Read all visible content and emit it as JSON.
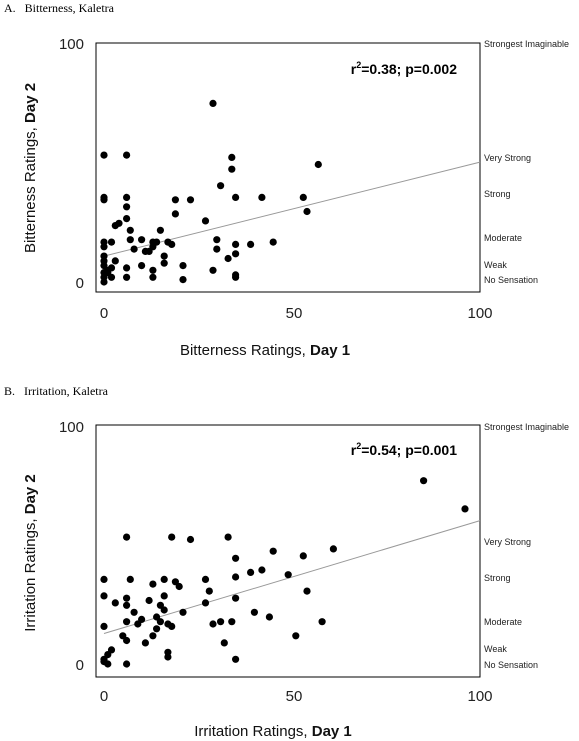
{
  "panels": [
    {
      "panel_label": "A.   Bitterness, Kaletra",
      "stat_r2_prefix": "r",
      "stat_r2_exponent": "2",
      "stat_rest": "=0.38; p=0.002",
      "xlabel_prefix": "Bitterness Ratings, ",
      "xlabel_bold": "Day 1",
      "ylabel_prefix": "Bitterness Ratings, ",
      "ylabel_bold": "Day 2",
      "x_ticks": [
        "0",
        "50",
        "100"
      ],
      "y_ticks": [
        "100",
        "0"
      ],
      "anchors": [
        "Strongest Imaginable",
        "Very Strong",
        "Strong",
        "Moderate",
        "Weak",
        "No Sensation"
      ]
    },
    {
      "panel_label": "B.   Irritation, Kaletra",
      "stat_r2_prefix": "r",
      "stat_r2_exponent": "2",
      "stat_rest": "=0.54; p=0.001",
      "xlabel_prefix": "Irritation Ratings, ",
      "xlabel_bold": "Day 1",
      "ylabel_prefix": "Irritation Ratings, ",
      "ylabel_bold": "Day 2",
      "x_ticks": [
        "0",
        "50",
        "100"
      ],
      "y_ticks": [
        "100",
        "0"
      ],
      "anchors": [
        "Strongest Imaginable",
        "Very Strong",
        "Strong",
        "Moderate",
        "Weak",
        "No Sensation"
      ]
    }
  ],
  "chart_data": [
    {
      "type": "scatter",
      "title": "Bitterness, Kaletra",
      "xlabel": "Bitterness Ratings, Day 1",
      "ylabel": "Bitterness Ratings, Day 2",
      "xlim": [
        0,
        100
      ],
      "ylim": [
        0,
        100
      ],
      "x_ticks": [
        0,
        50,
        100
      ],
      "y_ticks": [
        0,
        100
      ],
      "annotation": "r2=0.38; p=0.002",
      "trendline": {
        "x": [
          0,
          100
        ],
        "y": [
          11,
          51
        ]
      },
      "right_axis_anchors": [
        {
          "label": "Strongest Imaginable",
          "value": 100
        },
        {
          "label": "Very Strong",
          "value": 51
        },
        {
          "label": "Strong",
          "value": 36
        },
        {
          "label": "Moderate",
          "value": 18
        },
        {
          "label": "Weak",
          "value": 7
        },
        {
          "label": "No Sensation",
          "value": 0
        }
      ],
      "points": [
        [
          0,
          54
        ],
        [
          0,
          36
        ],
        [
          0,
          35
        ],
        [
          0,
          17
        ],
        [
          0,
          15
        ],
        [
          0,
          11
        ],
        [
          0,
          9
        ],
        [
          0,
          7
        ],
        [
          0,
          4
        ],
        [
          0,
          2
        ],
        [
          0,
          0
        ],
        [
          1,
          4
        ],
        [
          1,
          5
        ],
        [
          2,
          17
        ],
        [
          2,
          6
        ],
        [
          2,
          2
        ],
        [
          3,
          9
        ],
        [
          3,
          24
        ],
        [
          4,
          25
        ],
        [
          6,
          54
        ],
        [
          6,
          36
        ],
        [
          6,
          32
        ],
        [
          6,
          27
        ],
        [
          6,
          6
        ],
        [
          6,
          2
        ],
        [
          7,
          22
        ],
        [
          7,
          18
        ],
        [
          8,
          14
        ],
        [
          10,
          18
        ],
        [
          10,
          7
        ],
        [
          11,
          13
        ],
        [
          12,
          13
        ],
        [
          13,
          15
        ],
        [
          13,
          17
        ],
        [
          13,
          5
        ],
        [
          13,
          2
        ],
        [
          14,
          17
        ],
        [
          15,
          22
        ],
        [
          16,
          11
        ],
        [
          16,
          8
        ],
        [
          17,
          17
        ],
        [
          18,
          16
        ],
        [
          19,
          29
        ],
        [
          19,
          35
        ],
        [
          21,
          7
        ],
        [
          21,
          1
        ],
        [
          23,
          35
        ],
        [
          27,
          26
        ],
        [
          29,
          76
        ],
        [
          29,
          5
        ],
        [
          30,
          18
        ],
        [
          30,
          14
        ],
        [
          31,
          41
        ],
        [
          33,
          10
        ],
        [
          34,
          53
        ],
        [
          34,
          48
        ],
        [
          35,
          16
        ],
        [
          35,
          12
        ],
        [
          35,
          36
        ],
        [
          35,
          3
        ],
        [
          35,
          2
        ],
        [
          39,
          16
        ],
        [
          42,
          36
        ],
        [
          45,
          17
        ],
        [
          53,
          36
        ],
        [
          54,
          30
        ],
        [
          57,
          50
        ]
      ]
    },
    {
      "type": "scatter",
      "title": "Irritation, Kaletra",
      "xlabel": "Irritation Ratings, Day 1",
      "ylabel": "Irritation Ratings, Day 2",
      "xlim": [
        0,
        100
      ],
      "ylim": [
        0,
        100
      ],
      "x_ticks": [
        0,
        50,
        100
      ],
      "y_ticks": [
        0,
        100
      ],
      "annotation": "r2=0.54; p=0.001",
      "trendline": {
        "x": [
          0,
          100
        ],
        "y": [
          13,
          61
        ]
      },
      "right_axis_anchors": [
        {
          "label": "Strongest Imaginable",
          "value": 100
        },
        {
          "label": "Very Strong",
          "value": 51
        },
        {
          "label": "Strong",
          "value": 36
        },
        {
          "label": "Moderate",
          "value": 18
        },
        {
          "label": "Weak",
          "value": 7
        },
        {
          "label": "No Sensation",
          "value": 0
        }
      ],
      "points": [
        [
          0,
          36
        ],
        [
          0,
          29
        ],
        [
          0,
          16
        ],
        [
          0,
          2
        ],
        [
          0,
          1
        ],
        [
          1,
          0
        ],
        [
          1,
          4
        ],
        [
          2,
          6
        ],
        [
          3,
          26
        ],
        [
          5,
          12
        ],
        [
          6,
          54
        ],
        [
          6,
          28
        ],
        [
          6,
          25
        ],
        [
          6,
          18
        ],
        [
          6,
          10
        ],
        [
          6,
          0
        ],
        [
          7,
          36
        ],
        [
          8,
          22
        ],
        [
          9,
          17
        ],
        [
          10,
          19
        ],
        [
          11,
          9
        ],
        [
          12,
          27
        ],
        [
          13,
          12
        ],
        [
          13,
          34
        ],
        [
          14,
          15
        ],
        [
          14,
          20
        ],
        [
          15,
          25
        ],
        [
          15,
          18
        ],
        [
          16,
          23
        ],
        [
          16,
          29
        ],
        [
          16,
          36
        ],
        [
          17,
          3
        ],
        [
          17,
          5
        ],
        [
          17,
          17
        ],
        [
          18,
          54
        ],
        [
          18,
          16
        ],
        [
          19,
          35
        ],
        [
          20,
          33
        ],
        [
          21,
          22
        ],
        [
          23,
          53
        ],
        [
          27,
          36
        ],
        [
          27,
          26
        ],
        [
          28,
          31
        ],
        [
          29,
          17
        ],
        [
          31,
          18
        ],
        [
          32,
          9
        ],
        [
          33,
          54
        ],
        [
          34,
          18
        ],
        [
          35,
          45
        ],
        [
          35,
          37
        ],
        [
          35,
          28
        ],
        [
          35,
          2
        ],
        [
          39,
          39
        ],
        [
          40,
          22
        ],
        [
          42,
          40
        ],
        [
          44,
          20
        ],
        [
          45,
          48
        ],
        [
          49,
          38
        ],
        [
          51,
          12
        ],
        [
          53,
          46
        ],
        [
          54,
          31
        ],
        [
          58,
          18
        ],
        [
          61,
          49
        ],
        [
          85,
          78
        ],
        [
          96,
          66
        ]
      ]
    }
  ]
}
